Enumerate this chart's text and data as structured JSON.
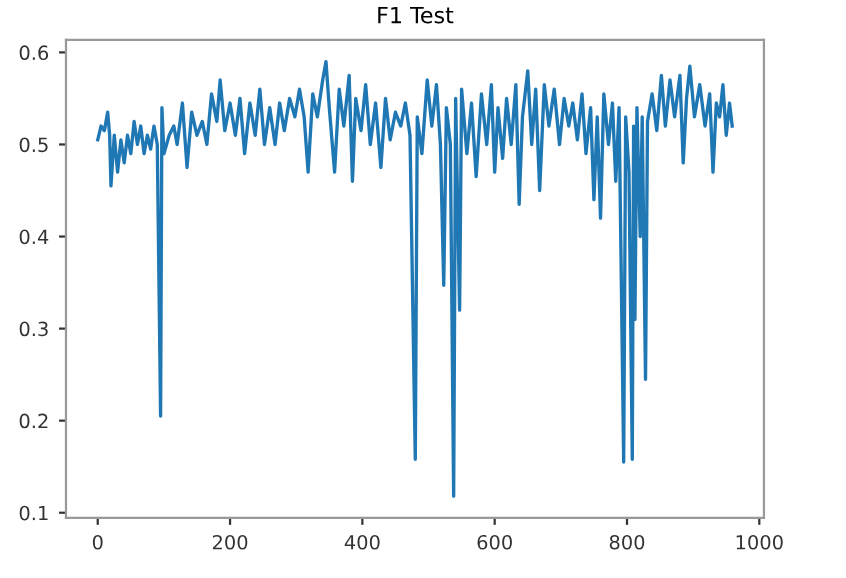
{
  "chart_data": {
    "type": "line",
    "title": "F1 Test",
    "x": [
      0,
      5,
      10,
      15,
      18,
      20,
      25,
      30,
      35,
      40,
      45,
      50,
      55,
      60,
      65,
      70,
      75,
      80,
      85,
      90,
      95,
      97,
      100,
      108,
      115,
      120,
      128,
      135,
      142,
      150,
      158,
      165,
      172,
      180,
      185,
      192,
      200,
      208,
      215,
      222,
      230,
      238,
      245,
      252,
      260,
      268,
      275,
      282,
      290,
      298,
      305,
      312,
      318,
      325,
      332,
      340,
      345,
      350,
      358,
      365,
      372,
      380,
      385,
      390,
      398,
      405,
      412,
      420,
      428,
      435,
      442,
      450,
      458,
      465,
      472,
      480,
      483,
      490,
      498,
      505,
      512,
      518,
      523,
      527,
      533,
      538,
      541,
      547,
      550,
      558,
      565,
      572,
      580,
      588,
      595,
      600,
      605,
      612,
      618,
      625,
      632,
      637,
      642,
      650,
      656,
      662,
      668,
      675,
      682,
      690,
      698,
      705,
      712,
      718,
      725,
      732,
      738,
      745,
      750,
      755,
      760,
      765,
      772,
      778,
      783,
      788,
      795,
      798,
      803,
      808,
      810,
      812,
      815,
      820,
      823,
      828,
      831,
      838,
      845,
      852,
      858,
      865,
      872,
      880,
      885,
      890,
      895,
      902,
      910,
      918,
      925,
      930,
      935,
      940,
      945,
      950,
      955,
      959
    ],
    "series": [
      {
        "color": "#1f77b4",
        "values": [
          0.505,
          0.52,
          0.515,
          0.535,
          0.51,
          0.455,
          0.51,
          0.47,
          0.505,
          0.48,
          0.51,
          0.49,
          0.525,
          0.5,
          0.52,
          0.49,
          0.51,
          0.495,
          0.52,
          0.5,
          0.205,
          0.54,
          0.49,
          0.51,
          0.52,
          0.5,
          0.545,
          0.475,
          0.535,
          0.51,
          0.525,
          0.5,
          0.555,
          0.525,
          0.57,
          0.515,
          0.545,
          0.51,
          0.55,
          0.49,
          0.545,
          0.51,
          0.56,
          0.5,
          0.54,
          0.5,
          0.545,
          0.515,
          0.55,
          0.53,
          0.56,
          0.53,
          0.47,
          0.555,
          0.53,
          0.57,
          0.59,
          0.54,
          0.47,
          0.56,
          0.52,
          0.575,
          0.46,
          0.55,
          0.515,
          0.565,
          0.5,
          0.545,
          0.475,
          0.55,
          0.505,
          0.535,
          0.52,
          0.545,
          0.51,
          0.158,
          0.53,
          0.49,
          0.57,
          0.52,
          0.565,
          0.5,
          0.347,
          0.54,
          0.5,
          0.118,
          0.55,
          0.32,
          0.56,
          0.49,
          0.545,
          0.465,
          0.555,
          0.5,
          0.565,
          0.47,
          0.54,
          0.485,
          0.55,
          0.5,
          0.565,
          0.435,
          0.53,
          0.58,
          0.5,
          0.56,
          0.45,
          0.565,
          0.52,
          0.56,
          0.5,
          0.55,
          0.52,
          0.545,
          0.505,
          0.555,
          0.49,
          0.54,
          0.44,
          0.53,
          0.42,
          0.555,
          0.5,
          0.545,
          0.46,
          0.54,
          0.155,
          0.53,
          0.47,
          0.158,
          0.52,
          0.31,
          0.54,
          0.4,
          0.53,
          0.245,
          0.525,
          0.555,
          0.515,
          0.575,
          0.52,
          0.57,
          0.53,
          0.575,
          0.48,
          0.55,
          0.585,
          0.53,
          0.565,
          0.52,
          0.555,
          0.47,
          0.545,
          0.53,
          0.565,
          0.51,
          0.545,
          0.52
        ]
      }
    ],
    "xlim": [
      -48,
      1007
    ],
    "ylim": [
      0.0944,
      0.6136
    ],
    "xticks": [
      0,
      200,
      400,
      600,
      800,
      1000
    ],
    "yticks": [
      0.1,
      0.2,
      0.3,
      0.4,
      0.5,
      0.6
    ],
    "grid": false,
    "legend": false
  }
}
